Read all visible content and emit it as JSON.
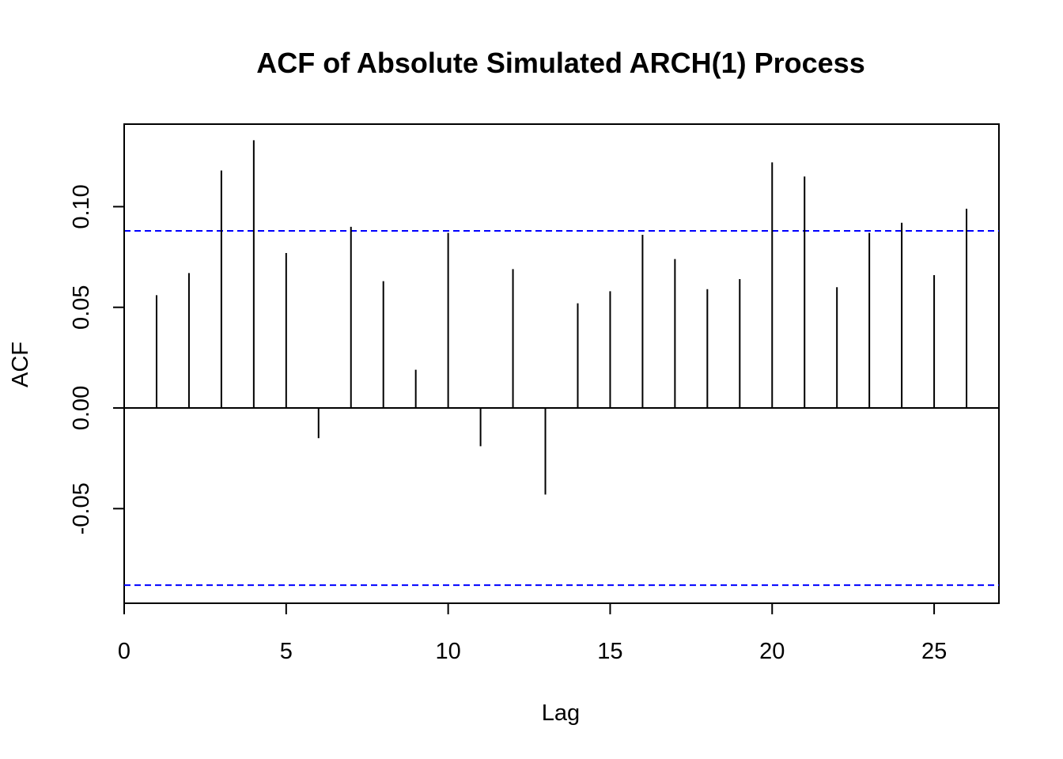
{
  "chart_data": {
    "type": "bar",
    "title": "ACF of Absolute Simulated ARCH(1) Process",
    "xlabel": "Lag",
    "ylabel": "ACF",
    "xlim": [
      0,
      27
    ],
    "ylim": [
      -0.097,
      0.141
    ],
    "x_ticks": [
      0,
      5,
      10,
      15,
      20,
      25
    ],
    "x_tick_labels": [
      "0",
      "5",
      "10",
      "15",
      "20",
      "25"
    ],
    "y_ticks": [
      -0.05,
      0.0,
      0.05,
      0.1
    ],
    "y_tick_labels": [
      "-0.05",
      "0.00",
      "0.05",
      "0.10"
    ],
    "zero_line": 0.0,
    "confidence_bound": 0.088,
    "confidence_color": "#0000ff",
    "bar_color": "#000000",
    "lags": [
      1,
      2,
      3,
      4,
      5,
      6,
      7,
      8,
      9,
      10,
      11,
      12,
      13,
      14,
      15,
      16,
      17,
      18,
      19,
      20,
      21,
      22,
      23,
      24,
      25,
      26
    ],
    "values": [
      0.056,
      0.067,
      0.118,
      0.133,
      0.077,
      -0.015,
      0.09,
      0.063,
      0.019,
      0.087,
      -0.019,
      0.069,
      -0.043,
      0.052,
      0.058,
      0.086,
      0.074,
      0.059,
      0.064,
      0.122,
      0.115,
      0.06,
      0.087,
      0.092,
      0.066,
      0.099
    ]
  }
}
